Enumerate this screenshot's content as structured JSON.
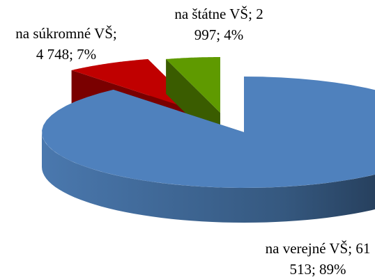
{
  "chart_data": {
    "type": "pie3d",
    "categories": [
      "na verejné VŠ",
      "na súkromné VŠ",
      "na štátne VŠ"
    ],
    "values": [
      61513,
      4748,
      2997
    ],
    "value_labels": [
      "61 513",
      "4 748",
      "2 997"
    ],
    "percentages": [
      89,
      7,
      4
    ],
    "percentage_labels": [
      "89%",
      "7%",
      "4%"
    ],
    "label_separator": "; ",
    "colors": [
      "#4f81bd",
      "#c00000",
      "#5f9a00"
    ]
  }
}
